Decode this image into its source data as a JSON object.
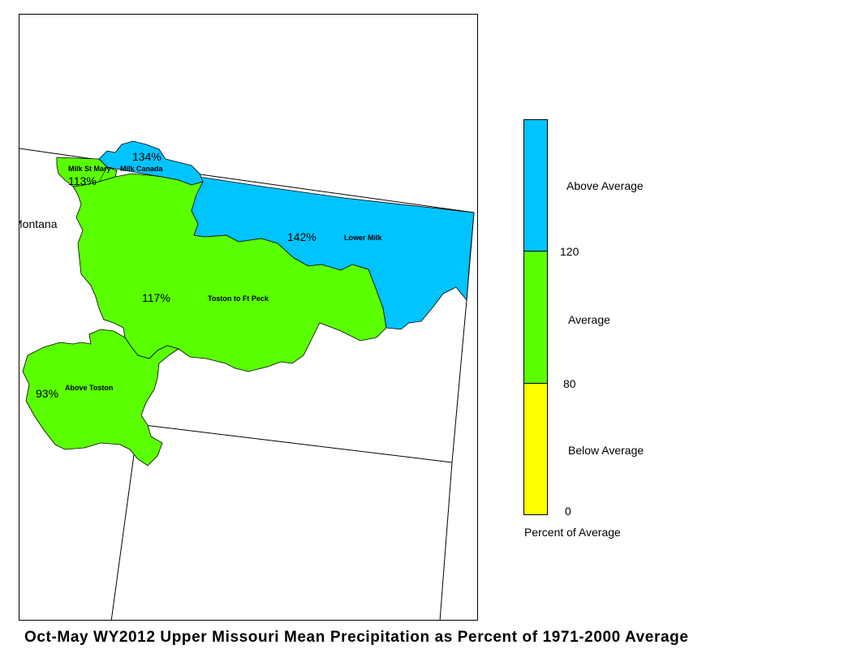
{
  "title": "Oct-May WY2012 Upper Missouri Mean Precipitation as Percent of 1971-2000 Average",
  "map": {
    "state_label": "Montana",
    "basins": [
      {
        "id": "milk-st-mary",
        "name": "Milk St Mary",
        "percent": "113%",
        "value": 113,
        "category": "Average"
      },
      {
        "id": "milk-canada",
        "name": "Milk Canada",
        "percent": "134%",
        "value": 134,
        "category": "Above Average"
      },
      {
        "id": "lower-milk",
        "name": "Lower Milk",
        "percent": "142%",
        "value": 142,
        "category": "Above Average"
      },
      {
        "id": "toston-ft-peck",
        "name": "Toston to Ft Peck",
        "percent": "117%",
        "value": 117,
        "category": "Average"
      },
      {
        "id": "above-toston",
        "name": "Above Toston",
        "percent": "93%",
        "value": 93,
        "category": "Average"
      }
    ]
  },
  "legend": {
    "caption": "Percent of Average",
    "classes": [
      {
        "label": "Above Average",
        "color": "#00c4ff"
      },
      {
        "label": "Average",
        "color": "#5aff00"
      },
      {
        "label": "Below Average",
        "color": "#ffff00"
      }
    ],
    "breaks": [
      "120",
      "80",
      "0"
    ]
  }
}
